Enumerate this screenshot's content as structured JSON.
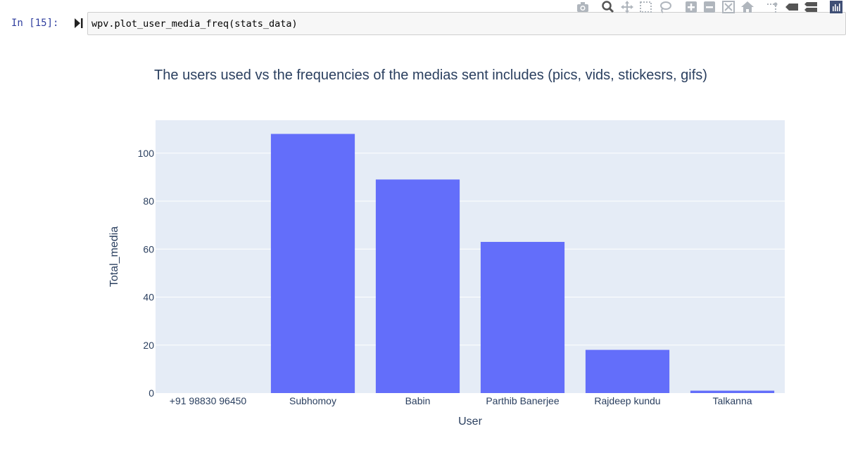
{
  "cell": {
    "prompt": "In [15]:",
    "code": "wpv.plot_user_media_freq(stats_data)"
  },
  "modebar": {
    "icons": [
      "camera-icon",
      "zoom-icon",
      "pan-icon",
      "box-select-icon",
      "lasso-select-icon",
      "zoom-in-icon",
      "zoom-out-icon",
      "autoscale-icon",
      "reset-axes-icon",
      "spike-lines-icon",
      "hover-closest-icon",
      "hover-compare-icon",
      "plotly-logo-icon"
    ],
    "icon_color": "#b0b6bd",
    "logo_color": "#3f4f75"
  },
  "colors": {
    "bar": "#636efa",
    "plot_bg": "#e5ecf6",
    "grid": "#ffffff",
    "text": "#2a3f5f"
  },
  "chart_data": {
    "type": "bar",
    "title": "The users used vs the frequencies of the medias sent includes (pics, vids, stickesrs, gifs)",
    "xlabel": "User",
    "ylabel": "Total_media",
    "categories": [
      "+91 98830 96450",
      "Subhomoy",
      "Babin",
      "Parthib Banerjee",
      "Rajdeep kundu",
      "Talkanna"
    ],
    "values": [
      0,
      108,
      89,
      63,
      18,
      1
    ],
    "ylim": [
      0,
      113.7
    ],
    "yticks": [
      0,
      20,
      40,
      60,
      80,
      100
    ],
    "grid": true,
    "legend": "none"
  }
}
